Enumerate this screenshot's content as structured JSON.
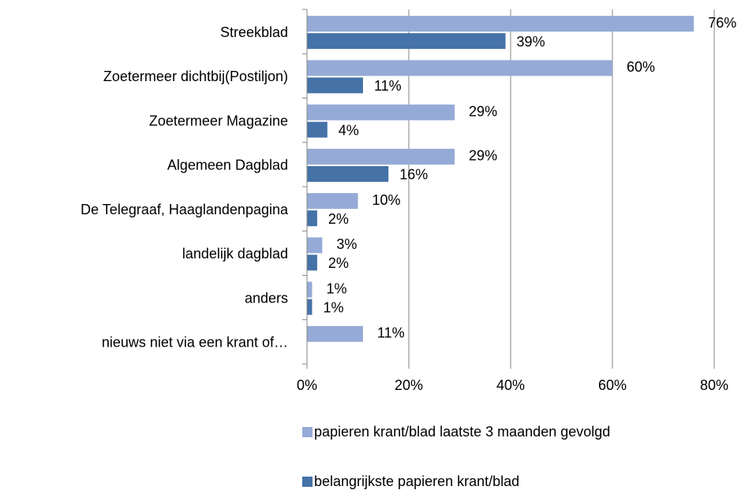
{
  "chart_data": {
    "type": "hbar",
    "categories": [
      "Streekblad",
      "Zoetermeer dichtbij(Postiljon)",
      "Zoetermeer Magazine",
      "Algemeen Dagblad",
      "De Telegraaf, Haaglandenpagina",
      "landelijk dagblad",
      "anders",
      "nieuws niet via een krant of…"
    ],
    "series": [
      {
        "name": "papieren krant/blad laatste 3 maanden gevolgd",
        "color": "#95aad6",
        "values": [
          76,
          60,
          29,
          29,
          10,
          3,
          1,
          11
        ],
        "value_labels": [
          "76%",
          "60%",
          "29%",
          "29%",
          "10%",
          "3%",
          "1%",
          "11%"
        ]
      },
      {
        "name": "belangrijkste papieren krant/blad",
        "color": "#4572a7",
        "values": [
          39,
          11,
          4,
          16,
          2,
          2,
          1,
          null
        ],
        "value_labels": [
          "39%",
          "11%",
          "4%",
          "16%",
          "2%",
          "2%",
          "1%",
          null
        ]
      }
    ],
    "xlim": [
      0,
      80
    ],
    "xticks": [
      {
        "value": 0,
        "label": "0%"
      },
      {
        "value": 20,
        "label": "20%"
      },
      {
        "value": 40,
        "label": "40%"
      },
      {
        "value": 60,
        "label": "60%"
      },
      {
        "value": 80,
        "label": "80%"
      }
    ],
    "grid": true,
    "legend": "bottom"
  }
}
